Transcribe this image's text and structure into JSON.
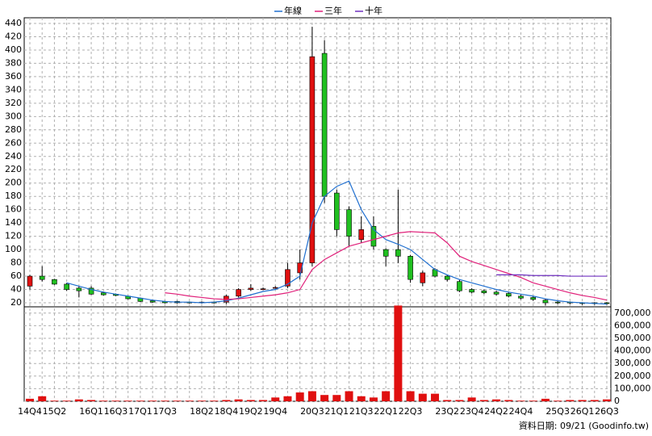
{
  "chart_data": {
    "type": "candlestick",
    "categories": [
      "14Q4",
      null,
      "15Q2",
      null,
      null,
      "16Q1",
      null,
      "16Q3",
      null,
      "17Q1",
      null,
      "17Q3",
      null,
      null,
      "18Q2",
      null,
      "18Q4",
      null,
      "19Q2",
      null,
      "19Q4",
      null,
      null,
      "20Q3",
      null,
      "21Q1",
      null,
      "21Q3",
      null,
      "22Q1",
      null,
      "22Q3",
      null,
      null,
      "23Q2",
      null,
      "23Q4",
      null,
      "24Q2",
      null,
      "24Q4",
      null,
      null,
      "25Q3",
      null,
      "26Q1",
      null,
      "26Q3"
    ],
    "open": [
      45,
      60,
      55,
      48,
      42,
      42,
      35,
      33,
      30,
      27,
      23,
      22,
      22,
      21,
      21,
      21,
      21,
      30,
      40,
      40,
      42,
      45,
      65,
      80,
      395,
      185,
      160,
      115,
      135,
      100,
      100,
      90,
      50,
      70,
      60,
      52,
      40,
      38,
      36,
      34,
      30,
      28,
      24,
      21,
      21,
      20,
      20,
      20
    ],
    "high": [
      62,
      75,
      56,
      50,
      45,
      45,
      36,
      34,
      31,
      28,
      24,
      23,
      23,
      22,
      22,
      22,
      32,
      42,
      48,
      43,
      45,
      80,
      100,
      435,
      415,
      190,
      165,
      150,
      150,
      102,
      190,
      92,
      68,
      72,
      62,
      55,
      42,
      40,
      38,
      36,
      32,
      30,
      26,
      23,
      22,
      21,
      21,
      21
    ],
    "low": [
      40,
      52,
      47,
      38,
      28,
      32,
      31,
      30,
      25,
      21,
      20,
      19,
      19,
      19,
      19,
      19,
      18,
      28,
      38,
      39,
      41,
      42,
      55,
      75,
      170,
      120,
      105,
      110,
      100,
      75,
      80,
      50,
      45,
      58,
      52,
      36,
      34,
      33,
      31,
      28,
      25,
      23,
      16,
      18,
      18,
      17,
      17,
      17
    ],
    "close": [
      60,
      55,
      48,
      40,
      38,
      33,
      32,
      31,
      26,
      22,
      21,
      20,
      20,
      20,
      20,
      20,
      30,
      40,
      42,
      41,
      43,
      70,
      80,
      390,
      180,
      130,
      120,
      130,
      105,
      90,
      90,
      55,
      65,
      60,
      55,
      38,
      36,
      35,
      33,
      30,
      27,
      25,
      20,
      20,
      20,
      19,
      19,
      19
    ],
    "up_color": "#e01010",
    "down_color": "#20c020",
    "series": [
      {
        "name": "年線",
        "color": "#1f6fd0",
        "values": [
          null,
          null,
          null,
          50,
          45,
          40,
          36,
          33,
          30,
          27,
          24,
          22,
          21,
          21,
          20,
          21,
          23,
          27,
          32,
          37,
          40,
          48,
          60,
          140,
          180,
          195,
          203,
          160,
          130,
          115,
          108,
          100,
          85,
          70,
          62,
          55,
          50,
          45,
          40,
          36,
          33,
          30,
          26,
          23,
          21,
          20,
          19,
          18
        ]
      },
      {
        "name": "三年",
        "color": "#e0207a",
        "values": [
          null,
          null,
          null,
          null,
          null,
          null,
          null,
          null,
          null,
          null,
          null,
          35,
          33,
          30,
          28,
          26,
          25,
          26,
          28,
          30,
          32,
          35,
          40,
          70,
          85,
          95,
          105,
          110,
          115,
          120,
          125,
          127,
          126,
          125,
          110,
          90,
          82,
          76,
          70,
          64,
          58,
          50,
          45,
          40,
          35,
          31,
          28,
          24
        ]
      },
      {
        "name": "十年",
        "color": "#7030c0",
        "values": [
          null,
          null,
          null,
          null,
          null,
          null,
          null,
          null,
          null,
          null,
          null,
          null,
          null,
          null,
          null,
          null,
          null,
          null,
          null,
          null,
          null,
          null,
          null,
          null,
          null,
          null,
          null,
          null,
          null,
          null,
          null,
          null,
          null,
          null,
          null,
          null,
          null,
          null,
          62,
          62,
          62,
          61,
          61,
          61,
          60,
          60,
          60,
          60
        ]
      }
    ],
    "volume": [
      20000,
      40000,
      5000,
      5000,
      15000,
      10000,
      5000,
      5000,
      5000,
      5000,
      5000,
      5000,
      5000,
      5000,
      5000,
      5000,
      10000,
      15000,
      10000,
      10000,
      30000,
      40000,
      70000,
      80000,
      50000,
      50000,
      80000,
      40000,
      30000,
      80000,
      760000,
      80000,
      60000,
      60000,
      10000,
      10000,
      30000,
      10000,
      15000,
      10000,
      5000,
      5000,
      20000,
      5000,
      10000,
      10000,
      10000,
      15000
    ],
    "volume_color": "#e01010",
    "ylim": [
      20,
      440
    ],
    "yticks": [
      20,
      40,
      60,
      80,
      100,
      120,
      140,
      160,
      180,
      200,
      220,
      240,
      260,
      280,
      300,
      320,
      340,
      360,
      380,
      400,
      420,
      440
    ],
    "y2lim": [
      0,
      750000
    ],
    "y2ticks": [
      0,
      {
        "value": 100000,
        "label": "100,000"
      },
      {
        "value": 200000,
        "label": "200,000"
      },
      {
        "value": 300000,
        "label": "300,000"
      },
      {
        "value": 400000,
        "label": "400,000"
      },
      {
        "value": 500000,
        "label": "500,000"
      },
      {
        "value": 600000,
        "label": "600,000"
      },
      {
        "value": 700000,
        "label": "700,000"
      }
    ],
    "grid": true,
    "footnote": "資料日期: 09/21  (Goodinfo.tw)"
  }
}
